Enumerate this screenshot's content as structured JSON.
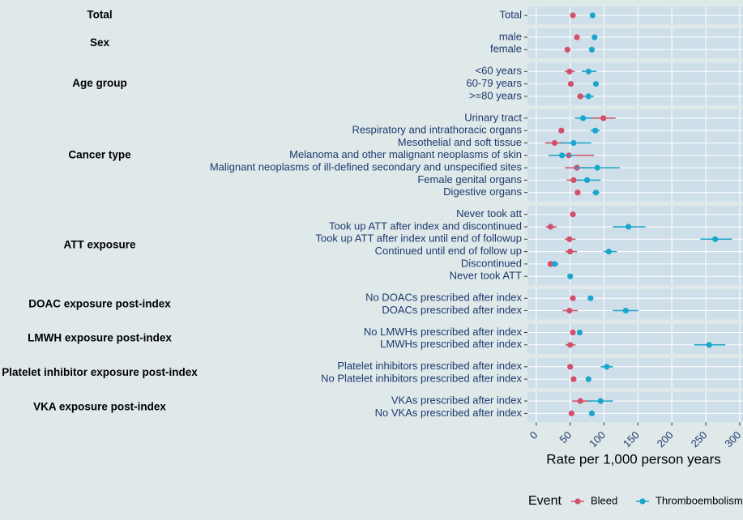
{
  "chart_data": {
    "type": "forest",
    "xlabel": "Rate per 1,000 person years",
    "legend_title": "Event",
    "xlim": [
      -13,
      305
    ],
    "xticks": [
      0,
      50,
      100,
      150,
      200,
      250,
      300
    ],
    "grid": true,
    "legend": "bottom",
    "groups": [
      {
        "name": "Total",
        "rows": [
          "Total"
        ]
      },
      {
        "name": "Sex",
        "rows": [
          "male",
          "female"
        ]
      },
      {
        "name": "Age group",
        "rows": [
          "<60 years",
          "60-79 years",
          ">=80 years"
        ]
      },
      {
        "name": "Cancer type",
        "rows": [
          "Urinary tract",
          "Respiratory and intrathoracic organs",
          "Mesothelial and soft tissue",
          "Melanoma and other malignant neoplasms of skin",
          "Malignant neoplasms of ill-defined secondary and unspecified sites",
          "Female genital organs",
          "Digestive organs"
        ]
      },
      {
        "name": "ATT exposure",
        "rows": [
          "Never took att",
          "Took up ATT after index and discontinued",
          "Took up ATT after index until end of followup",
          "Continued until end of follow up",
          "Discontinued",
          "Never took ATT"
        ]
      },
      {
        "name": "DOAC exposure post-index",
        "rows": [
          "No DOACs prescribed after index",
          "DOACs prescribed after index"
        ]
      },
      {
        "name": "LMWH exposure post-index",
        "rows": [
          "No LMWHs prescribed after index",
          "LMWHs prescribed after index"
        ]
      },
      {
        "name": "Platelet inhibitor exposure post-index",
        "rows": [
          "Platelet inhibitors prescribed after index",
          "No Platelet inhibitors prescribed after index"
        ]
      },
      {
        "name": "VKA exposure post-index",
        "rows": [
          "VKAs prescribed after index",
          "No VKAs prescribed after index"
        ]
      }
    ],
    "series": [
      {
        "name": "Bleed",
        "color": "#d2506a",
        "values": [
          54,
          60,
          46,
          49,
          51,
          65,
          99,
          37,
          27,
          48,
          60,
          55,
          61,
          54,
          21,
          49,
          50,
          21,
          null,
          54,
          49,
          54,
          50,
          50,
          55,
          65,
          52
        ],
        "lower": [
          51,
          57,
          43,
          42,
          48,
          60,
          81,
          33,
          13,
          33,
          42,
          45,
          57,
          50,
          14,
          42,
          43,
          17,
          null,
          51,
          39,
          51,
          43,
          46,
          51,
          53,
          48
        ],
        "upper": [
          57,
          63,
          50,
          57,
          55,
          71,
          117,
          41,
          43,
          85,
          81,
          67,
          65,
          58,
          30,
          58,
          60,
          26,
          null,
          57,
          61,
          57,
          58,
          54,
          59,
          81,
          56
        ]
      },
      {
        "name": "Thromboembolism",
        "color": "#1aa6cc",
        "values": [
          83,
          86,
          82,
          77,
          88,
          77,
          69,
          87,
          55,
          38,
          90,
          75,
          88,
          null,
          136,
          264,
          107,
          27,
          50,
          80,
          132,
          64,
          255,
          104,
          77,
          95,
          82
        ],
        "lower": [
          80,
          83,
          79,
          67,
          85,
          70,
          57,
          80,
          36,
          18,
          57,
          60,
          83,
          null,
          113,
          242,
          99,
          23,
          47,
          77,
          113,
          61,
          233,
          95,
          74,
          77,
          78
        ],
        "upper": [
          86,
          89,
          85,
          89,
          91,
          85,
          83,
          94,
          81,
          57,
          123,
          95,
          93,
          null,
          161,
          289,
          119,
          33,
          53,
          83,
          151,
          67,
          279,
          113,
          80,
          113,
          86
        ]
      }
    ]
  }
}
